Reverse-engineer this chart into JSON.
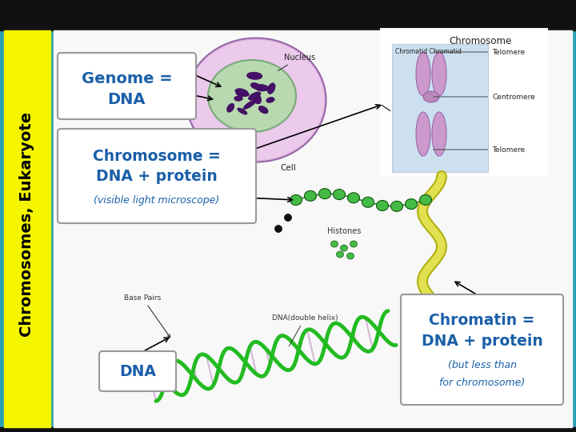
{
  "bg_color": "#2aa0b4",
  "left_bar_color": "#f5f500",
  "left_bar_text": "Chromosomes, Eukaryote",
  "left_bar_text_color": "#000000",
  "top_black_color": "#111111",
  "white_panel_color": "#f8f8f8",
  "box_bg": "#ffffff",
  "box_border": "#aaaaaa",
  "text_blue": "#1a5fa8",
  "box1_line1": "Genome =",
  "box1_line2": "DNA",
  "box2_line1": "Chromosome =",
  "box2_line2": "DNA + protein",
  "box2_line3": "(visible light microscope)",
  "box3_text": "DNA",
  "box4_line1": "Chromatin =",
  "box4_line2": "DNA + protein",
  "box4_line3": "(but less than",
  "box4_line4": "for chromosome)",
  "chr_box_color": "#cce0f0",
  "cell_outer_color": "#d4a8cc",
  "cell_outer_edge": "#9966aa",
  "nucleus_color": "#aad4a0",
  "nucleus_edge": "#77aa77",
  "chrom_color": "#441166"
}
